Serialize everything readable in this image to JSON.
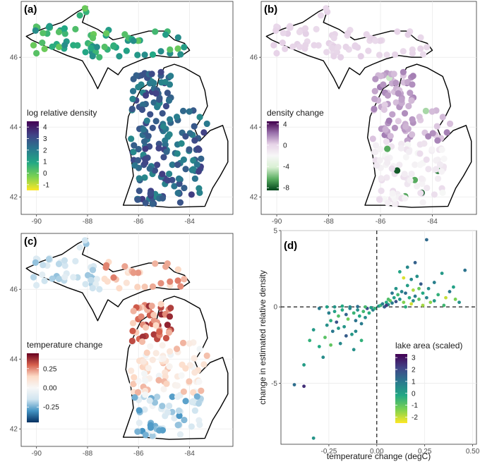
{
  "chart_data": [
    {
      "type": "scatter",
      "panel": "(a)",
      "kind": "map",
      "xticks": [
        "-90",
        "-88",
        "-86",
        "-84"
      ],
      "yticks": [
        "42",
        "44",
        "46"
      ],
      "xlim": [
        -90.6,
        -82.3
      ],
      "ylim": [
        41.5,
        47.6
      ],
      "legend": {
        "title": "log relative density",
        "ticks": [
          "4",
          "3",
          "2",
          "1",
          "0",
          "-1"
        ],
        "range": [
          -1.5,
          4.5
        ],
        "placement": "bottom-left"
      },
      "colors": [
        "#fde725",
        "#7ad151",
        "#22a884",
        "#2a788e",
        "#414487",
        "#440154"
      ]
    },
    {
      "type": "scatter",
      "panel": "(b)",
      "kind": "map",
      "xticks": [
        "-90",
        "-88",
        "-86",
        "-84"
      ],
      "yticks": [
        "42",
        "44",
        "46"
      ],
      "xlim": [
        -90.6,
        -82.3
      ],
      "ylim": [
        41.5,
        47.6
      ],
      "legend": {
        "title": "density change",
        "ticks": [
          "4",
          "0",
          "-4",
          "-8"
        ],
        "range": [
          -8.5,
          4.5
        ],
        "placement": "bottom-left"
      },
      "colors": [
        "#00441b",
        "#5aae61",
        "#d9f0d3",
        "#f7f7f7",
        "#e7d4e8",
        "#9970ab",
        "#40004b"
      ]
    },
    {
      "type": "scatter",
      "panel": "(c)",
      "kind": "map",
      "xticks": [
        "-90",
        "-88",
        "-86",
        "-84"
      ],
      "yticks": [
        "42",
        "44",
        "46"
      ],
      "xlim": [
        -90.6,
        -82.3
      ],
      "ylim": [
        41.5,
        47.6
      ],
      "legend": {
        "title": "temperature change",
        "ticks": [
          "0.25",
          "0.00",
          "-0.25"
        ],
        "range": [
          -0.45,
          0.45
        ],
        "placement": "bottom-left"
      },
      "colors": [
        "#053061",
        "#4393c3",
        "#d1e5f0",
        "#f7f7f7",
        "#fddbc7",
        "#d6604d",
        "#67001f"
      ]
    },
    {
      "type": "scatter",
      "panel": "(d)",
      "xlabel": "temperature change (degC)",
      "ylabel": "change in estimated relative density",
      "xticks": [
        "-0.25",
        "0.00",
        "0.25",
        "0.50"
      ],
      "yticks": [
        "-5",
        "0",
        "5"
      ],
      "xlim": [
        -0.5,
        0.52
      ],
      "ylim": [
        -9,
        5
      ],
      "reference_lines": {
        "x": 0,
        "y": 0,
        "style": "dashed"
      },
      "legend": {
        "title": "lake area (scaled)",
        "ticks": [
          "3",
          "2",
          "1",
          "0",
          "-1",
          "-2"
        ],
        "range": [
          -2.5,
          3.3
        ],
        "placement": "bottom-right"
      },
      "colors": [
        "#fde725",
        "#7ad151",
        "#22a884",
        "#2a788e",
        "#414487",
        "#440154"
      ],
      "points": [
        [
          -0.43,
          -5.1,
          1.2
        ],
        [
          -0.38,
          -5.2,
          2.5
        ],
        [
          -0.33,
          -8.6,
          0.3
        ],
        [
          -0.38,
          -3.8,
          0.1
        ],
        [
          -0.35,
          -2.2,
          -0.4
        ],
        [
          -0.33,
          -1.5,
          0.2
        ],
        [
          -0.3,
          -2.6,
          -0.2
        ],
        [
          -0.28,
          -3.3,
          0.5
        ],
        [
          -0.27,
          -2.0,
          -0.9
        ],
        [
          -0.26,
          -1.2,
          0.4
        ],
        [
          -0.25,
          -0.4,
          0.8
        ],
        [
          -0.24,
          -0.9,
          -0.3
        ],
        [
          -0.23,
          -1.6,
          1.0
        ],
        [
          -0.22,
          -0.3,
          0.0
        ],
        [
          -0.21,
          -1.0,
          1.8
        ],
        [
          -0.2,
          -0.6,
          -0.8
        ],
        [
          -0.19,
          -2.4,
          0.6
        ],
        [
          -0.18,
          -0.2,
          -0.2
        ],
        [
          -0.17,
          -1.3,
          0.3
        ],
        [
          -0.16,
          -0.5,
          1.4
        ],
        [
          -0.15,
          -0.8,
          -1.2
        ],
        [
          -0.14,
          -0.1,
          0.7
        ],
        [
          -0.13,
          -1.8,
          0.2
        ],
        [
          -0.12,
          -0.4,
          -0.5
        ],
        [
          -0.11,
          -0.9,
          1.1
        ],
        [
          -0.1,
          -0.2,
          0.4
        ],
        [
          -0.09,
          -0.6,
          -0.1
        ],
        [
          -0.08,
          -1.1,
          0.9
        ],
        [
          -0.07,
          -0.3,
          -0.6
        ],
        [
          -0.06,
          -0.7,
          0.5
        ],
        [
          -0.05,
          -0.1,
          2.0
        ],
        [
          -0.04,
          -0.4,
          -0.3
        ],
        [
          -0.03,
          -0.05,
          0.1
        ],
        [
          -0.02,
          -0.2,
          0.8
        ],
        [
          -0.01,
          -0.1,
          -0.4
        ],
        [
          -0.22,
          0.0,
          0.3
        ],
        [
          -0.18,
          0.05,
          -0.2
        ],
        [
          -0.14,
          0.0,
          0.6
        ],
        [
          -0.1,
          0.02,
          1.2
        ],
        [
          -0.06,
          0.0,
          -0.7
        ],
        [
          -0.26,
          0.0,
          0.0
        ],
        [
          -0.3,
          -0.1,
          0.9
        ],
        [
          -0.12,
          -2.8,
          0.4
        ],
        [
          -0.08,
          -2.2,
          -0.4
        ],
        [
          -0.16,
          -1.9,
          1.6
        ],
        [
          -0.2,
          -1.4,
          0.2
        ],
        [
          -0.24,
          -2.5,
          -1.0
        ],
        [
          -0.11,
          -1.6,
          0.6
        ],
        [
          0.01,
          0.05,
          0.3
        ],
        [
          0.02,
          0.1,
          -0.5
        ],
        [
          0.03,
          0.2,
          0.8
        ],
        [
          0.04,
          0.0,
          1.5
        ],
        [
          0.05,
          0.3,
          -0.2
        ],
        [
          0.06,
          0.15,
          0.4
        ],
        [
          0.07,
          0.4,
          -1.1
        ],
        [
          0.08,
          0.25,
          0.9
        ],
        [
          0.09,
          0.6,
          0.0
        ],
        [
          0.1,
          0.35,
          1.8
        ],
        [
          0.11,
          0.8,
          -0.6
        ],
        [
          0.12,
          0.5,
          0.3
        ],
        [
          0.13,
          1.0,
          0.7
        ],
        [
          0.14,
          0.3,
          -1.4
        ],
        [
          0.15,
          0.9,
          1.2
        ],
        [
          0.16,
          1.4,
          0.1
        ],
        [
          0.17,
          0.6,
          -0.3
        ],
        [
          0.18,
          1.8,
          0.6
        ],
        [
          0.19,
          1.1,
          -1.8
        ],
        [
          0.2,
          0.7,
          0.9
        ],
        [
          0.21,
          2.0,
          0.4
        ],
        [
          0.22,
          0.5,
          -0.9
        ],
        [
          0.23,
          1.5,
          1.6
        ],
        [
          0.24,
          0.9,
          -0.2
        ],
        [
          0.26,
          4.4,
          1.3
        ],
        [
          0.27,
          1.2,
          0.5
        ],
        [
          0.28,
          0.3,
          -1.5
        ],
        [
          0.3,
          1.6,
          0.8
        ],
        [
          0.32,
          0.8,
          -0.4
        ],
        [
          0.34,
          2.2,
          0.2
        ],
        [
          0.36,
          0.6,
          -2.0
        ],
        [
          0.38,
          1.0,
          0.9
        ],
        [
          0.41,
          0.5,
          -1.3
        ],
        [
          0.43,
          0.3,
          0.4
        ],
        [
          0.46,
          2.4,
          1.1
        ],
        [
          0.12,
          2.3,
          -0.1
        ],
        [
          0.16,
          2.6,
          0.6
        ],
        [
          0.2,
          2.9,
          1.5
        ],
        [
          0.14,
          1.9,
          -2.2
        ],
        [
          0.18,
          0.2,
          -2.1
        ],
        [
          0.24,
          0.1,
          -1.7
        ],
        [
          0.1,
          1.2,
          0.3
        ],
        [
          0.08,
          0.9,
          1.0
        ],
        [
          0.06,
          0.5,
          -0.8
        ],
        [
          0.3,
          0.4,
          0.2
        ],
        [
          0.22,
          1.2,
          -1.1
        ],
        [
          0.26,
          0.6,
          0.7
        ],
        [
          0.05,
          0.1,
          2.3
        ],
        [
          0.15,
          0.0,
          -0.3
        ],
        [
          0.19,
          0.4,
          0.5
        ],
        [
          0.35,
          0.1,
          -0.6
        ],
        [
          0.4,
          1.3,
          0.0
        ]
      ]
    }
  ]
}
